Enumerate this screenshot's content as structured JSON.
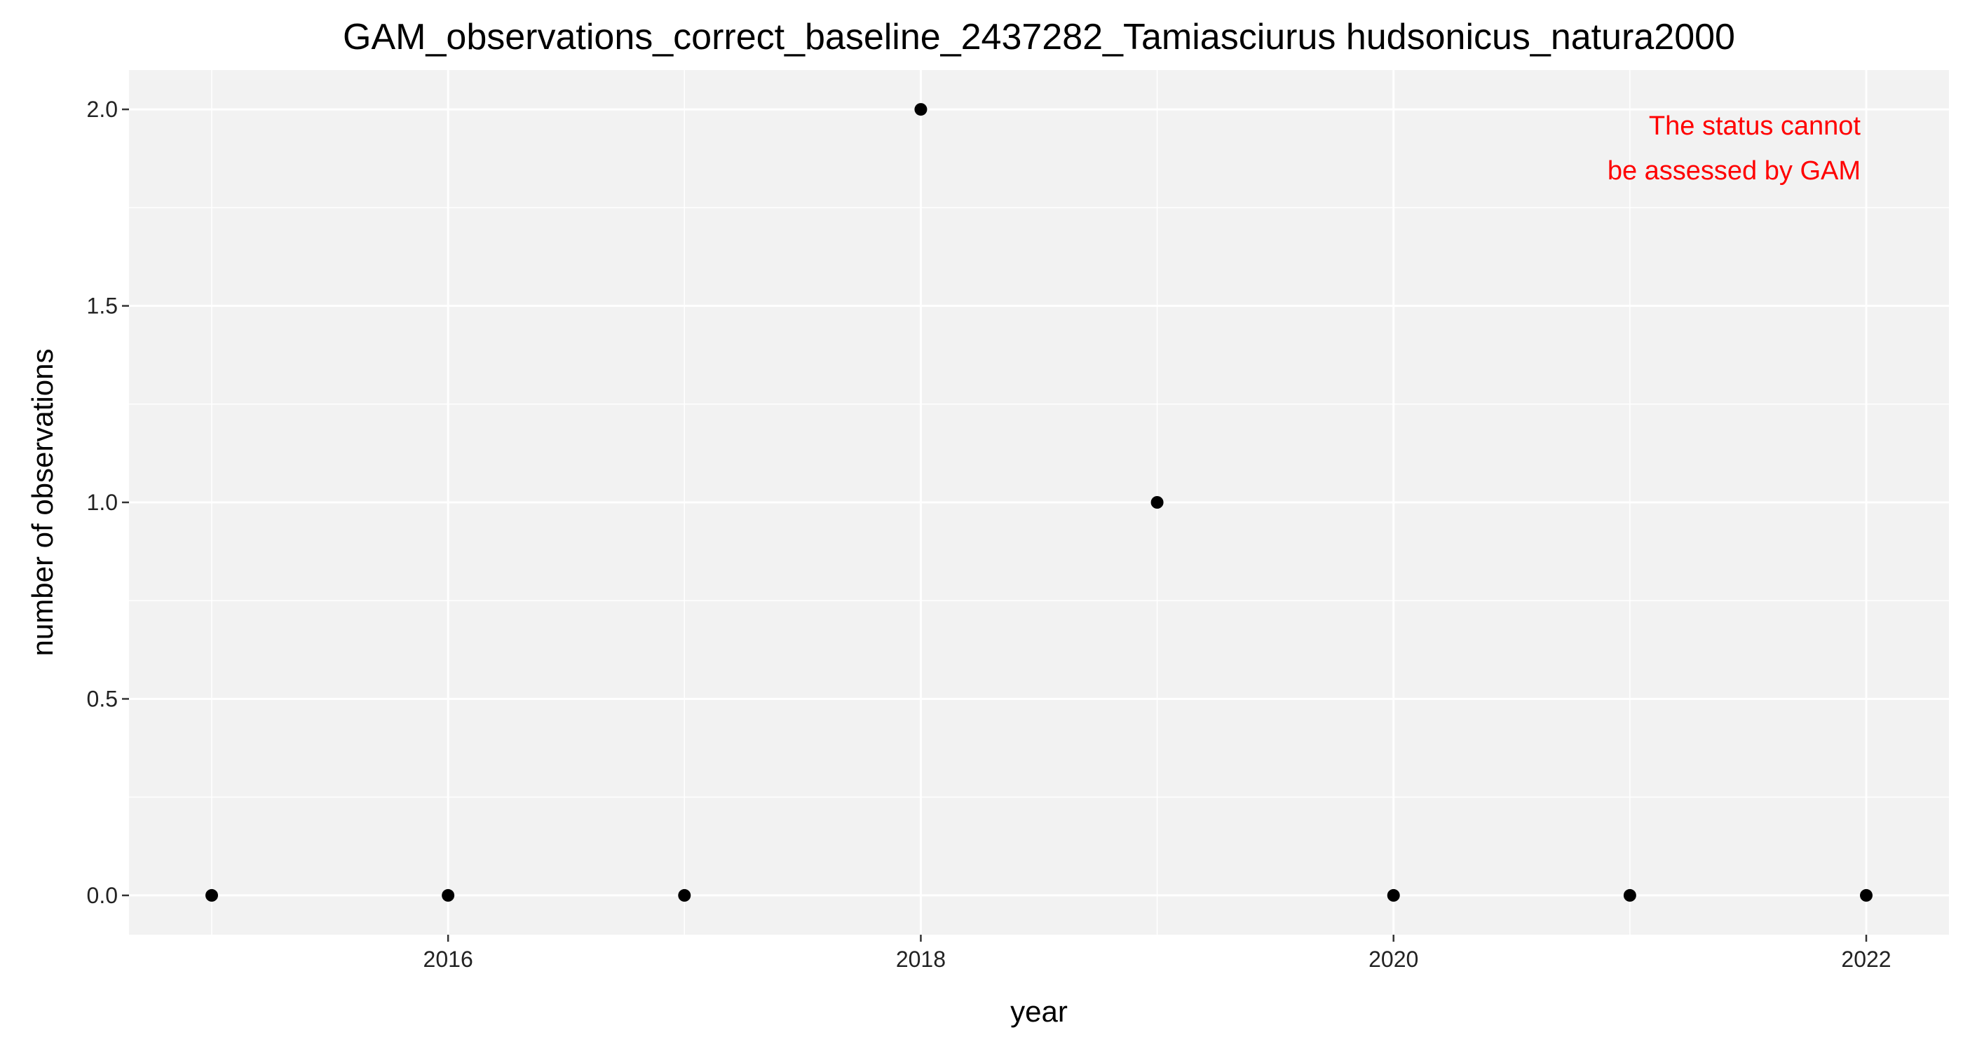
{
  "chart_data": {
    "type": "scatter",
    "title": "GAM_observations_correct_baseline_2437282_Tamiasciurus hudsonicus_natura2000",
    "xlabel": "year",
    "ylabel": "number of observations",
    "x": [
      2015,
      2016,
      2017,
      2018,
      2019,
      2020,
      2021,
      2022
    ],
    "y": [
      0,
      0,
      0,
      2,
      1,
      0,
      0,
      0
    ],
    "xlim": [
      2014.65,
      2022.35
    ],
    "ylim": [
      -0.1,
      2.1
    ],
    "xticks": [
      2016,
      2018,
      2020,
      2022
    ],
    "xtick_labels": [
      "2016",
      "2018",
      "2020",
      "2022"
    ],
    "yticks": [
      0,
      0.5,
      1,
      1.5,
      2
    ],
    "ytick_labels": [
      "0.0",
      "0.5",
      "1.0",
      "1.5",
      "2.0"
    ],
    "grid": true,
    "annotation": {
      "lines": [
        "The status cannot",
        "be assessed by GAM"
      ],
      "color": "#ff0000",
      "position": "top-right"
    },
    "colors": {
      "panel": "#f2f2f2",
      "grid": "#ffffff",
      "point": "#000000"
    }
  }
}
